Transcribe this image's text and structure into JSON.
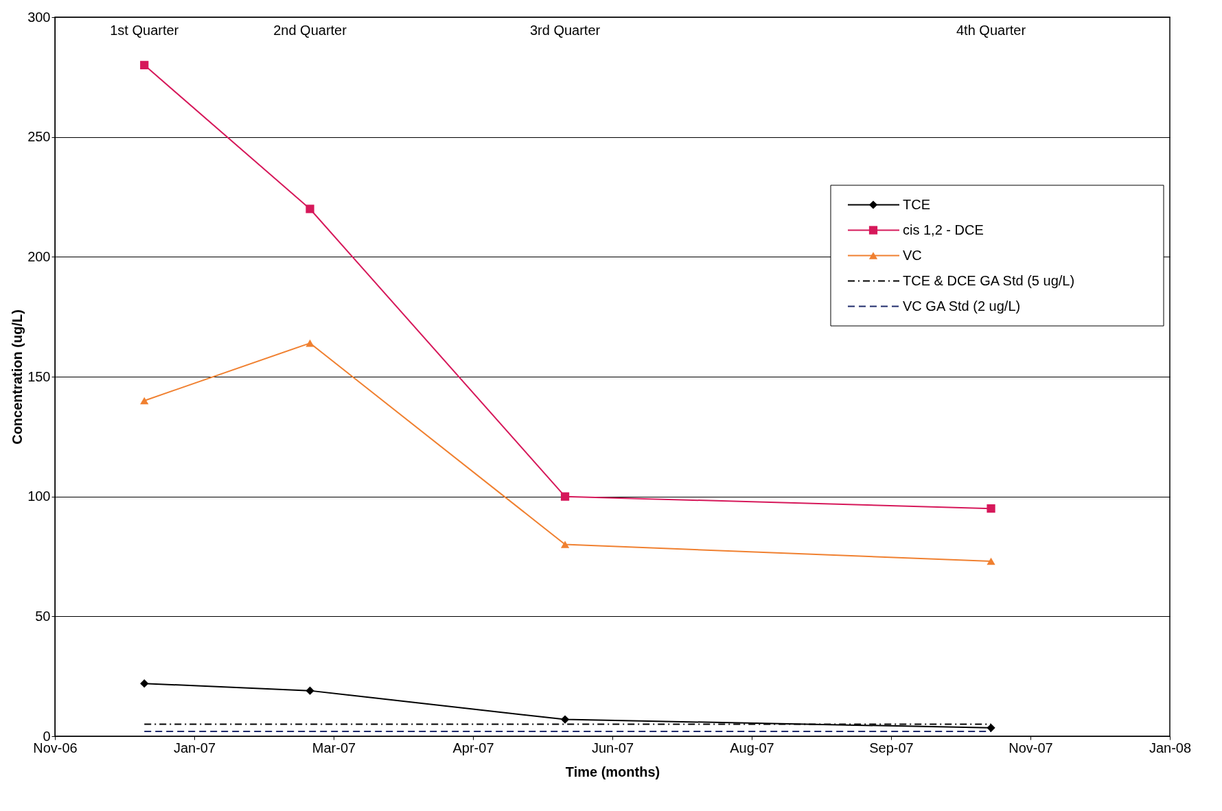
{
  "chart_data": {
    "type": "line",
    "xlabel": "Time (months)",
    "ylabel": "Concentration (ug/L)",
    "xlim": [
      "2006-11-15",
      "2008-01-13"
    ],
    "xticks": [
      {
        "value": "2006-11-15",
        "label": "Nov-06"
      },
      {
        "value": "2007-01-07",
        "label": "Jan-07"
      },
      {
        "value": "2007-03-01",
        "label": "Mar-07"
      },
      {
        "value": "2007-04-23",
        "label": "Apr-07"
      },
      {
        "value": "2007-06-15",
        "label": "Jun-07"
      },
      {
        "value": "2007-08-07",
        "label": "Aug-07"
      },
      {
        "value": "2007-09-29",
        "label": "Sep-07"
      },
      {
        "value": "2007-11-21",
        "label": "Nov-07"
      },
      {
        "value": "2008-01-13",
        "label": "Jan-08"
      }
    ],
    "ylim": [
      0,
      300
    ],
    "yticks": [
      0,
      50,
      100,
      150,
      200,
      250,
      300
    ],
    "grid": "y",
    "legend": "top right",
    "x": [
      "2006-12-19",
      "2007-02-20",
      "2007-05-28",
      "2007-11-06"
    ],
    "series": [
      {
        "name": "TCE",
        "color": "#000000",
        "marker": "diamond",
        "line_style": "solid",
        "values": [
          22,
          19,
          7,
          3.5
        ]
      },
      {
        "name": "cis 1,2 - DCE",
        "color": "#d6185a",
        "marker": "square",
        "line_style": "solid",
        "values": [
          280,
          220,
          100,
          95
        ]
      },
      {
        "name": "VC",
        "color": "#f08030",
        "marker": "triangle",
        "line_style": "solid",
        "values": [
          140,
          164,
          80,
          73
        ]
      },
      {
        "name": "TCE & DCE GA Std (5 ug/L)",
        "color": "#000000",
        "marker": "none",
        "line_style": "dashdot",
        "x": [
          "2006-12-19",
          "2007-11-06"
        ],
        "values": [
          5,
          5
        ]
      },
      {
        "name": "VC GA Std (2 ug/L)",
        "color": "#1f2a6b",
        "marker": "none",
        "line_style": "dashed",
        "x": [
          "2006-12-19",
          "2007-11-06"
        ],
        "values": [
          2,
          2
        ]
      }
    ],
    "annotations": [
      "1st Quarter",
      "2nd Quarter",
      "3rd Quarter",
      "4th Quarter"
    ]
  }
}
